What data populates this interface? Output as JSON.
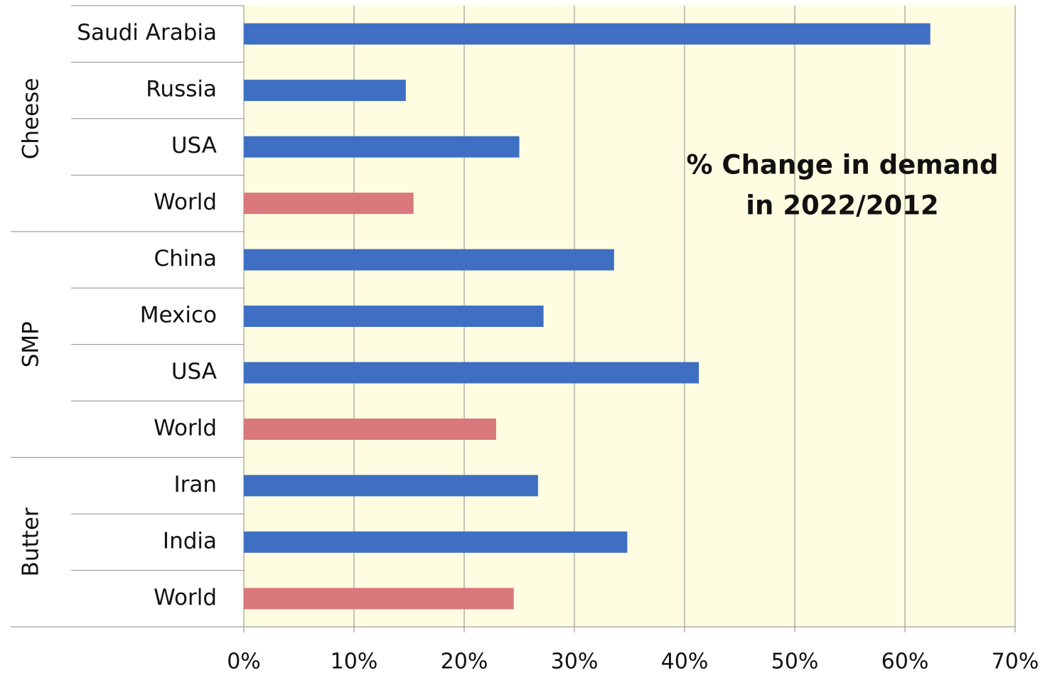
{
  "chart_data": {
    "type": "bar",
    "orientation": "horizontal",
    "groups": [
      {
        "name": "Cheese",
        "categories": [
          "Saudi Arabia",
          "Russia",
          "USA",
          "World"
        ],
        "values": [
          62.3,
          14.7,
          25.0,
          15.4
        ],
        "colors": [
          "#3f6fc2",
          "#3f6fc2",
          "#3f6fc2",
          "#d9797c"
        ]
      },
      {
        "name": "SMP",
        "categories": [
          "China",
          "Mexico",
          "USA",
          "World"
        ],
        "values": [
          33.6,
          27.2,
          41.3,
          22.9
        ],
        "colors": [
          "#3f6fc2",
          "#3f6fc2",
          "#3f6fc2",
          "#d9797c"
        ]
      },
      {
        "name": "Butter",
        "categories": [
          "Iran",
          "India",
          "World"
        ],
        "values": [
          26.7,
          34.8,
          24.5
        ],
        "colors": [
          "#3f6fc2",
          "#3f6fc2",
          "#d9797c"
        ]
      }
    ],
    "xlim": [
      0,
      70
    ],
    "xticks": [
      {
        "value": 0,
        "label": "0%"
      },
      {
        "value": 10,
        "label": "10%"
      },
      {
        "value": 20,
        "label": "20%"
      },
      {
        "value": 30,
        "label": "30%"
      },
      {
        "value": 40,
        "label": "40%"
      },
      {
        "value": 50,
        "label": "50%"
      },
      {
        "value": 60,
        "label": "60%"
      },
      {
        "value": 70,
        "label": "70%"
      }
    ],
    "grid": true,
    "plot_background": "#fffde1",
    "annotation": [
      "% Change in demand",
      "in 2022/2012"
    ]
  }
}
